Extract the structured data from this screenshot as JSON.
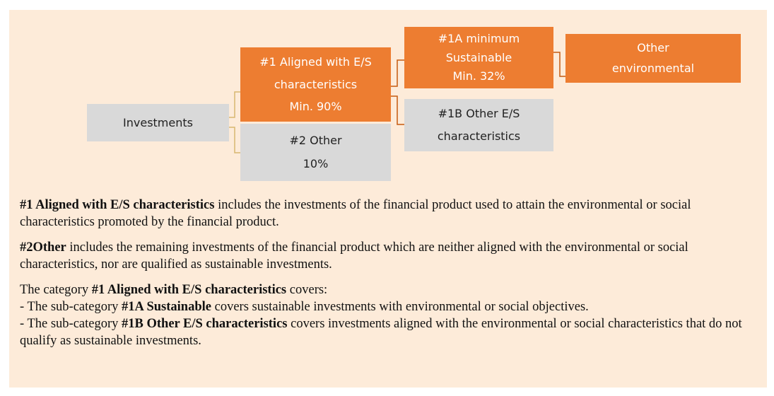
{
  "nodes": [
    {
      "lines": [
        "Investments"
      ]
    },
    {
      "lines": [
        "#1  Aligned with E/S",
        "characteristics",
        "Min. 90%"
      ]
    },
    {
      "lines": [
        "#2 Other",
        "10%"
      ]
    },
    {
      "lines": [
        "#1A minimum",
        "Sustainable",
        "Min. 32%"
      ]
    },
    {
      "lines": [
        "#1B Other E/S",
        "characteristics"
      ]
    },
    {
      "lines": [
        "Other",
        "environmental"
      ]
    }
  ],
  "paragraphs": [
    [
      {
        "bold": "#1 Aligned with E/S characteristics"
      },
      {
        "text": " includes the investments of the financial product used to attain the environmental or social characteristics promoted by the financial product."
      }
    ],
    [
      {
        "bold": "#2Other"
      },
      {
        "text": " includes the remaining investments of the financial product which are neither aligned with the environmental or social characteristics, nor are qualified as sustainable investments."
      }
    ]
  ],
  "category": {
    "intro": [
      {
        "text": "The category "
      },
      {
        "bold": "#1 Aligned with E/S characteristics"
      },
      {
        "text": " covers:"
      }
    ],
    "items": [
      [
        {
          "text": "- The sub-category "
        },
        {
          "bold": "#1A Sustainable"
        },
        {
          "text": " covers sustainable investments with environmental or social objectives."
        }
      ],
      [
        {
          "text": "- The sub-category "
        },
        {
          "bold": "#1B Other E/S characteristics"
        },
        {
          "text": " covers investments aligned with the environmental or social characteristics that do not qualify as sustainable investments."
        }
      ]
    ]
  }
}
